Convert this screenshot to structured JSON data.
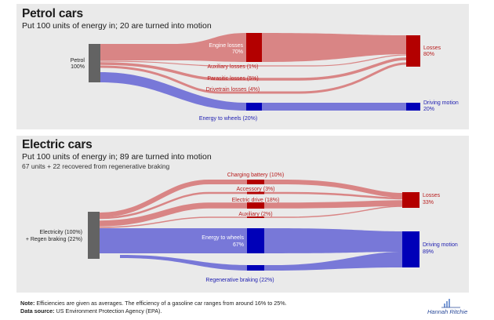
{
  "petrol": {
    "title": "Petrol cars",
    "subtitle": "Put 100 units of energy in; 20 are turned into motion",
    "source_label": "Petrol",
    "source_value": "100%",
    "flows": {
      "engine_losses": {
        "label": "Engine losses",
        "value": "70%"
      },
      "auxiliary_losses": {
        "label": "Auxiliary losses",
        "value": "(1%)"
      },
      "parasitic_losses": {
        "label": "Parasitic losses",
        "value": "(5%)"
      },
      "drivetrain_losses": {
        "label": "Drivetrain losses",
        "value": "(4%)"
      },
      "energy_to_wheels": {
        "label": "Energy to wheels",
        "value": "(20%)"
      }
    },
    "sinks": {
      "losses": {
        "label": "Losses",
        "value": "80%"
      },
      "driving_motion": {
        "label": "Driving motion",
        "value": "20%"
      }
    }
  },
  "electric": {
    "title": "Electric cars",
    "subtitle": "Put 100 units of energy in; 89 are turned into motion",
    "subtitle2": "67 units + 22 recovered from regenerative braking",
    "source_label": "Electricity (100%)",
    "source_label2": "+ Regen braking (22%)",
    "flows": {
      "charging_battery": {
        "label": "Charging battery",
        "value": "(10%)"
      },
      "accessory": {
        "label": "Accessory",
        "value": "(3%)"
      },
      "electric_drive": {
        "label": "Electric drive",
        "value": "(18%)"
      },
      "auxiliary": {
        "label": "Auxiliary",
        "value": "(2%)"
      },
      "energy_to_wheels": {
        "label": "Energy to wheels",
        "value": "67%"
      },
      "regenerative_braking": {
        "label": "Regenerative braking",
        "value": "(22%)"
      }
    },
    "sinks": {
      "losses": {
        "label": "Losses",
        "value": "33%"
      },
      "driving_motion": {
        "label": "Driving motion",
        "value": "89%"
      }
    }
  },
  "footer": {
    "note_label": "Note:",
    "note_text": " Efficiencies are given as averages. The efficiency of a gasoline car ranges from around 16% to 25%.",
    "source_label": "Data source:",
    "source_text": " US Environment Protection Agency (EPA)."
  },
  "author": "Hannah Ritchie",
  "colors": {
    "loss_flow": "#d98585",
    "loss_node": "#b30000",
    "motion_flow": "#7878d8",
    "motion_node": "#0000b8",
    "source_node": "#636363"
  }
}
